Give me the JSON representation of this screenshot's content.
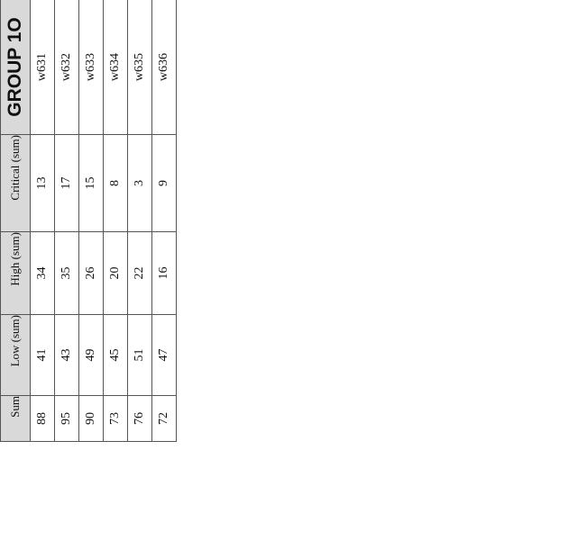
{
  "table": {
    "headers": [
      "Sum",
      "Low (sum)",
      "High (sum)",
      "Critical (sum)",
      "GROUP 1O"
    ],
    "rows": [
      [
        "88",
        "41",
        "34",
        "13",
        "w631"
      ],
      [
        "95",
        "43",
        "35",
        "17",
        "w632"
      ],
      [
        "90",
        "49",
        "26",
        "15",
        "w633"
      ],
      [
        "73",
        "45",
        "20",
        "8",
        "w634"
      ],
      [
        "76",
        "51",
        "22",
        "3",
        "w635"
      ],
      [
        "72",
        "47",
        "16",
        "9",
        "w636"
      ]
    ]
  },
  "colors": {
    "header_bg": "#d9d9d9",
    "border": "#555555"
  }
}
